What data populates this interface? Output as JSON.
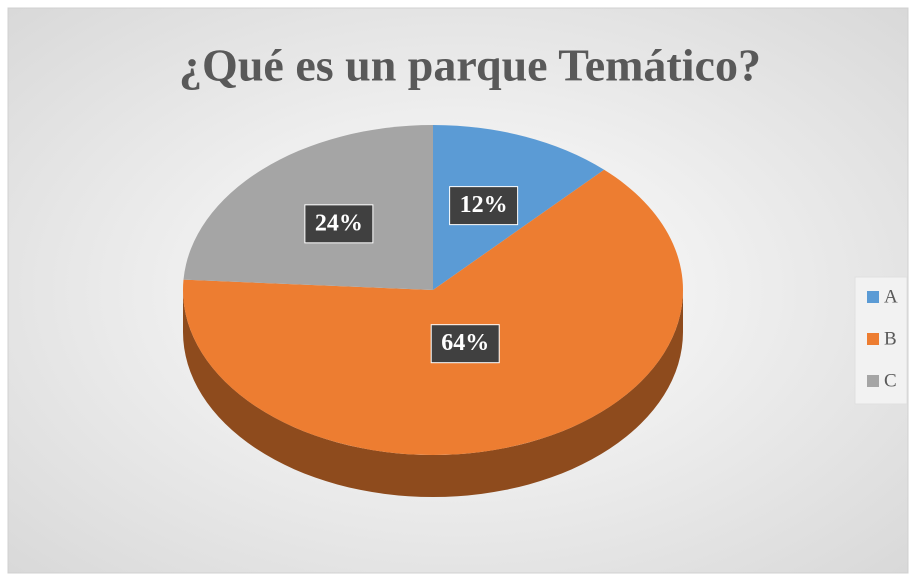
{
  "chart_data": {
    "type": "pie",
    "title": "¿Qué es un parque Temático?",
    "categories": [
      "A",
      "B",
      "C"
    ],
    "values": [
      12,
      64,
      24
    ],
    "value_labels": [
      "12%",
      "64%",
      "24%"
    ],
    "colors": [
      "#5b9bd5",
      "#ed7d31",
      "#a5a5a5"
    ],
    "legend": "right"
  }
}
